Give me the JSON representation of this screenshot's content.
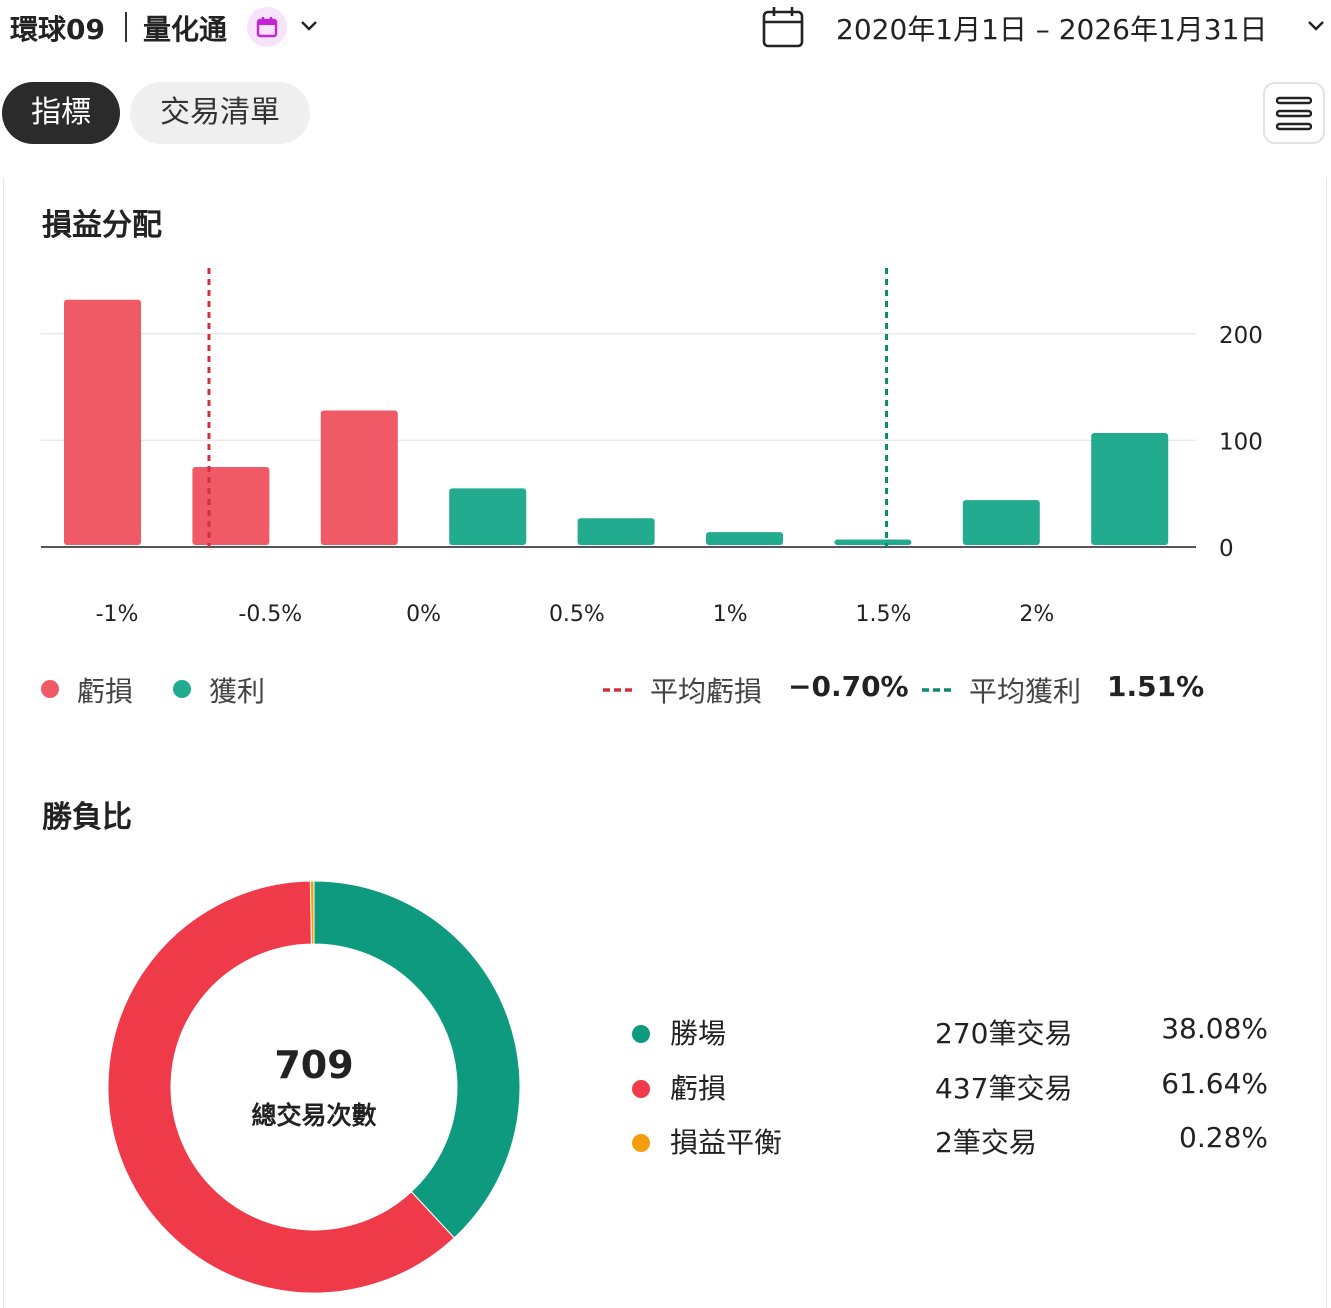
{
  "header": {
    "account": "環球09",
    "product": "量化通",
    "date_range": "2020年1月1日 – 2026年1月31日"
  },
  "tabs": [
    {
      "label": "指標",
      "active": true
    },
    {
      "label": "交易清單",
      "active": false
    }
  ],
  "colors": {
    "loss": "#f05a66",
    "profit": "#22ab8f",
    "win_pie": "#0d9a7f",
    "loss_pie": "#ef3a4a",
    "breakeven": "#f59e0b",
    "avg_loss_line": "#d32f3f",
    "avg_profit_line": "#0a8a6c",
    "accent_purple": "#c026d3"
  },
  "pnl_distribution": {
    "title": "損益分配",
    "legend": {
      "loss": "虧損",
      "profit": "獲利"
    },
    "avg_loss_label": "平均虧損",
    "avg_loss_value": "−0.70%",
    "avg_profit_label": "平均獲利",
    "avg_profit_value": "1.51%"
  },
  "chart_data": {
    "type": "bar",
    "x_tick_labels": [
      "-1%",
      "-0.5%",
      "0%",
      "0.5%",
      "1%",
      "1.5%",
      "2%"
    ],
    "y_tick_labels": [
      "0",
      "100",
      "200"
    ],
    "ylim": [
      0,
      200
    ],
    "bins": [
      {
        "value": 232,
        "kind": "loss"
      },
      {
        "value": 75,
        "kind": "loss"
      },
      {
        "value": 128,
        "kind": "loss"
      },
      {
        "value": 55,
        "kind": "profit"
      },
      {
        "value": 27,
        "kind": "profit"
      },
      {
        "value": 14,
        "kind": "profit"
      },
      {
        "value": 7,
        "kind": "profit"
      },
      {
        "value": 44,
        "kind": "profit"
      },
      {
        "value": 107,
        "kind": "profit"
      }
    ],
    "avg_loss_pct": -0.7,
    "avg_profit_pct": 1.51,
    "grid": true,
    "y_axis_side": "right"
  },
  "win_loss": {
    "title": "勝負比",
    "total_trades": "709",
    "total_label": "總交易次數",
    "rows": [
      {
        "name": "勝場",
        "count": "270筆交易",
        "pct": "38.08%",
        "value": 270,
        "color": "#0d9a7f"
      },
      {
        "name": "虧損",
        "count": "437筆交易",
        "pct": "61.64%",
        "value": 437,
        "color": "#ef3a4a"
      },
      {
        "name": "損益平衡",
        "count": "2筆交易",
        "pct": "0.28%",
        "value": 2,
        "color": "#f59e0b"
      }
    ]
  }
}
